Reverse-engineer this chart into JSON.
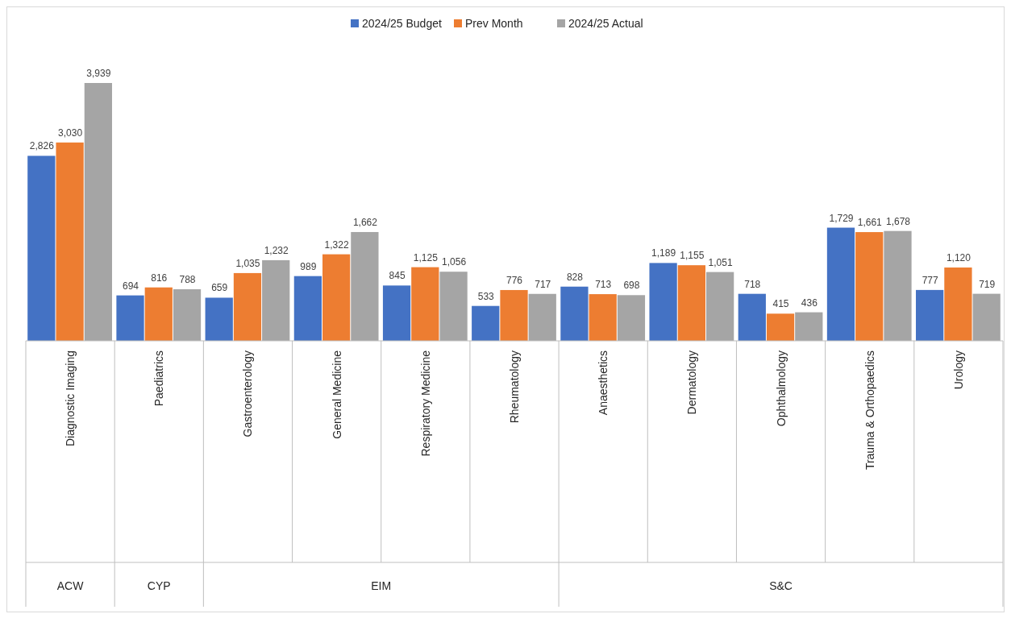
{
  "chart_data": {
    "type": "bar",
    "categories": [
      "Diagnostic Imaging",
      "Paediatrics",
      "Gastroenterology",
      "General Medicine",
      "Respiratory Medicine",
      "Rheumatology",
      "Anaesthetics",
      "Dermatology",
      "Ophthalmology",
      "Trauma & Orthopaedics",
      "Urology"
    ],
    "series": [
      {
        "name": "2024/25 Budget",
        "color": "#4472c4",
        "values": [
          2826,
          694,
          659,
          989,
          845,
          533,
          828,
          1189,
          718,
          1729,
          777
        ],
        "value_labels": [
          "2,826",
          "694",
          "659",
          "989",
          "845",
          "533",
          "828",
          "1,189",
          "718",
          "1,729",
          "777"
        ]
      },
      {
        "name": "Prev Month",
        "color": "#ed7d31",
        "values": [
          3030,
          816,
          1035,
          1322,
          1125,
          776,
          713,
          1155,
          415,
          1661,
          1120
        ],
        "value_labels": [
          "3,030",
          "816",
          "1,035",
          "1,322",
          "1,125",
          "776",
          "713",
          "1,155",
          "415",
          "1,661",
          "1,120"
        ]
      },
      {
        "name": "2024/25 Actual",
        "color": "#a5a5a5",
        "values": [
          3939,
          788,
          1232,
          1662,
          1056,
          717,
          698,
          1051,
          436,
          1678,
          719
        ],
        "value_labels": [
          "3,939",
          "788",
          "1,232",
          "1,662",
          "1,056",
          "717",
          "698",
          "1,051",
          "436",
          "1,678",
          "719"
        ]
      }
    ],
    "legend": "top",
    "annotations": [
      "ACW",
      "CYP",
      "EIM",
      "S&C"
    ]
  }
}
